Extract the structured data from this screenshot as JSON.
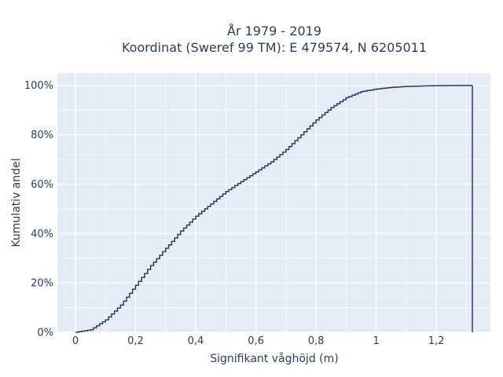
{
  "chart_data": {
    "type": "ecdf",
    "title_lines": [
      "År 1979 - 2019",
      "Koordinat (Sweref 99 TM): E 479574, N 6205011"
    ],
    "xlabel": "Signifikant våghöjd (m)",
    "ylabel": "Kumulativ andel",
    "xlim": [
      -0.06,
      1.38
    ],
    "ylim": [
      0,
      1.05
    ],
    "x_ticks": [
      {
        "value": 0,
        "label": "0"
      },
      {
        "value": 0.2,
        "label": "0,2"
      },
      {
        "value": 0.4,
        "label": "0,4"
      },
      {
        "value": 0.6,
        "label": "0,6"
      },
      {
        "value": 0.8,
        "label": "0,8"
      },
      {
        "value": 1.0,
        "label": "1"
      },
      {
        "value": 1.2,
        "label": "1,2"
      }
    ],
    "y_ticks": [
      {
        "value": 0,
        "label": "0%"
      },
      {
        "value": 0.2,
        "label": "20%"
      },
      {
        "value": 0.4,
        "label": "40%"
      },
      {
        "value": 0.6,
        "label": "60%"
      },
      {
        "value": 0.8,
        "label": "80%"
      },
      {
        "value": 1.0,
        "label": "100%"
      }
    ],
    "grid": true,
    "colors": {
      "plot_bg": "#e5ecf6",
      "grid": "#ffffff",
      "line": "#2a3f5f",
      "text": "#2a3f5f"
    },
    "series": [
      {
        "x": [
          0.0,
          0.05,
          0.1,
          0.15,
          0.2,
          0.25,
          0.3,
          0.35,
          0.4,
          0.45,
          0.5,
          0.55,
          0.6,
          0.65,
          0.7,
          0.75,
          0.8,
          0.85,
          0.9,
          0.95,
          1.0,
          1.05,
          1.1,
          1.2,
          1.32
        ],
        "y": [
          0.0,
          0.01,
          0.05,
          0.11,
          0.19,
          0.27,
          0.34,
          0.41,
          0.47,
          0.52,
          0.57,
          0.61,
          0.65,
          0.69,
          0.74,
          0.8,
          0.86,
          0.91,
          0.95,
          0.975,
          0.985,
          0.992,
          0.996,
          0.999,
          1.0
        ]
      }
    ]
  }
}
